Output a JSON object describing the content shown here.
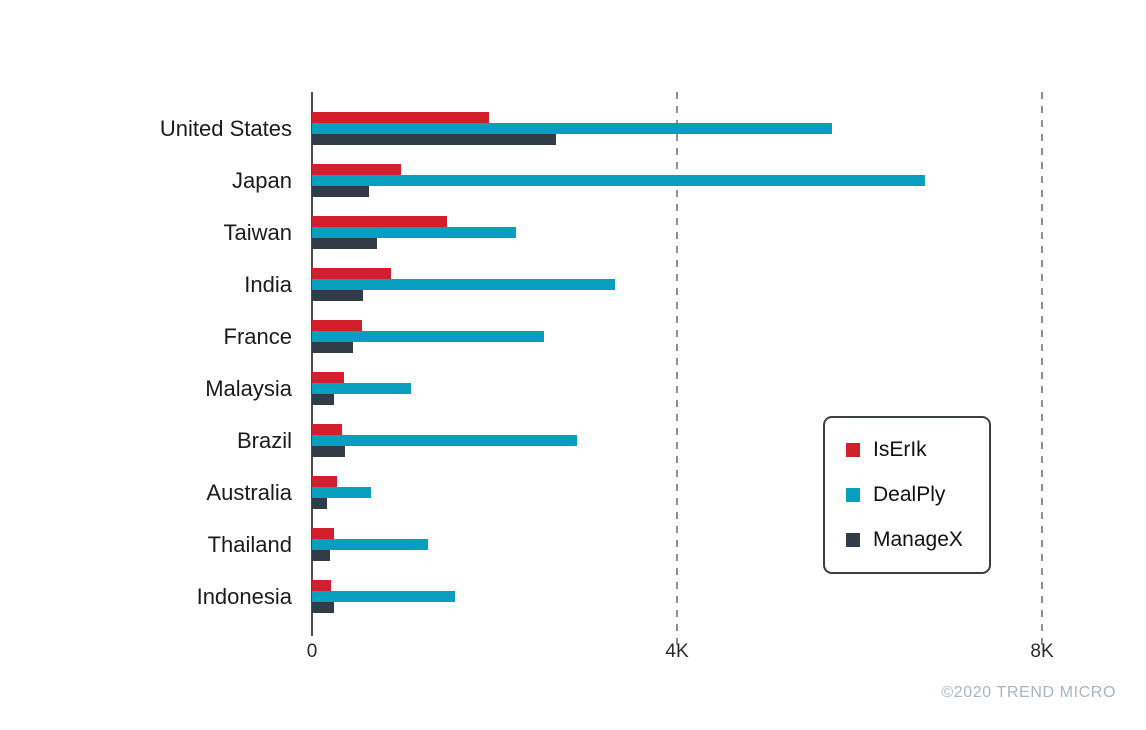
{
  "chart_data": {
    "type": "bar",
    "orientation": "horizontal",
    "title": "",
    "xlabel": "",
    "ylabel": "",
    "categories": [
      "United States",
      "Japan",
      "Taiwan",
      "India",
      "France",
      "Malaysia",
      "Brazil",
      "Australia",
      "Thailand",
      "Indonesia"
    ],
    "series": [
      {
        "name": "IsErIk",
        "color": "#d1202b",
        "values": [
          1940,
          970,
          1480,
          870,
          550,
          350,
          330,
          270,
          240,
          210
        ]
      },
      {
        "name": "DealPly",
        "color": "#089fbe",
        "values": [
          5700,
          6720,
          2240,
          3320,
          2540,
          1090,
          2900,
          650,
          1270,
          1570
        ]
      },
      {
        "name": "ManageX",
        "color": "#323c46",
        "values": [
          2670,
          630,
          710,
          560,
          450,
          240,
          360,
          160,
          200,
          240
        ]
      }
    ],
    "x_ticks": [
      {
        "label": "0",
        "value": 0
      },
      {
        "label": "4K",
        "value": 4000
      },
      {
        "label": "8K",
        "value": 8000
      }
    ],
    "xlim": [
      0,
      9100
    ],
    "gridlines": {
      "values": [
        4000,
        8000
      ],
      "style": "dashed",
      "color": "#8f8f8f"
    },
    "legend": {
      "position": "right-middle",
      "border": true
    }
  },
  "footer": {
    "copyright": "©2020 TREND MICRO",
    "color": "#a6b5c2"
  },
  "colors": {
    "background": "#ffffff",
    "axis": "#4d4d4d",
    "category_label": "#1b1b1b",
    "tick_label": "#2b2b2b"
  }
}
